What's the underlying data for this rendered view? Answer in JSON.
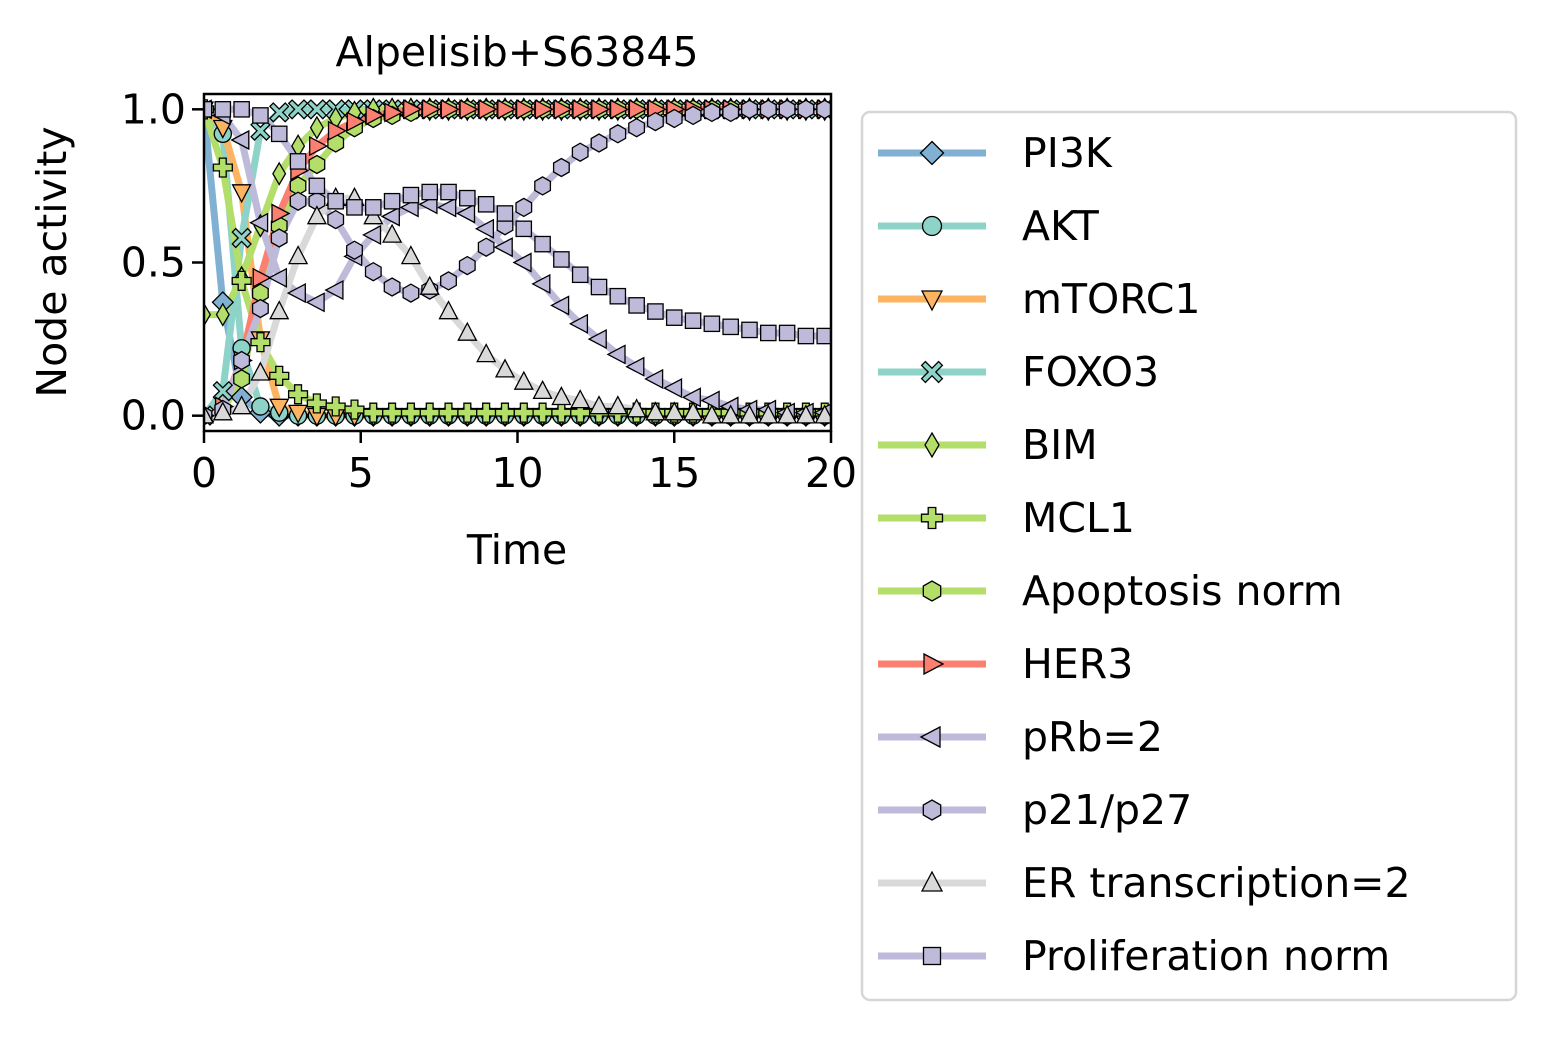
{
  "chart_data": {
    "type": "line",
    "title": "Alpelisib+S63845",
    "xlabel": "Time",
    "ylabel": "Node activity",
    "xlim": [
      0,
      20
    ],
    "ylim": [
      -0.05,
      1.05
    ],
    "xticks": [
      0,
      5,
      10,
      15,
      20
    ],
    "xtick_labels": [
      "0",
      "5",
      "10",
      "15",
      "20"
    ],
    "yticks": [
      0.0,
      0.5,
      1.0
    ],
    "ytick_labels": [
      "0.0",
      "0.5",
      "1.0"
    ],
    "grid": false,
    "legend_position": "right-outside",
    "x": [
      0,
      0.6,
      1.2,
      1.8,
      2.4,
      3.0,
      3.6,
      4.2,
      4.8,
      5.4,
      6.0,
      6.6,
      7.2,
      7.8,
      8.4,
      9.0,
      9.6,
      10.2,
      10.8,
      11.4,
      12.0,
      12.6,
      13.2,
      13.8,
      14.4,
      15.0,
      15.6,
      16.2,
      16.8,
      17.4,
      18.0,
      18.6,
      19.2,
      19.8
    ],
    "series": [
      {
        "name": "PI3K",
        "color": "#80b1d3",
        "marker": "diamond",
        "values": [
          1.0,
          0.37,
          0.06,
          0.01,
          0.0,
          0.0,
          0.0,
          0.0,
          0.0,
          0.0,
          0.0,
          0.0,
          0.0,
          0.0,
          0.0,
          0.0,
          0.0,
          0.0,
          0.0,
          0.0,
          0.0,
          0.0,
          0.0,
          0.0,
          0.0,
          0.0,
          0.0,
          0.0,
          0.0,
          0.0,
          0.0,
          0.0,
          0.0,
          0.0
        ]
      },
      {
        "name": "AKT",
        "color": "#8dd3c7",
        "marker": "circle",
        "values": [
          1.0,
          0.92,
          0.22,
          0.03,
          0.01,
          0.0,
          0.0,
          0.0,
          0.0,
          0.0,
          0.0,
          0.0,
          0.0,
          0.0,
          0.0,
          0.0,
          0.0,
          0.0,
          0.0,
          0.0,
          0.0,
          0.0,
          0.0,
          0.0,
          0.0,
          0.0,
          0.0,
          0.0,
          0.0,
          0.0,
          0.0,
          0.0,
          0.0,
          0.0
        ]
      },
      {
        "name": "mTORC1",
        "color": "#fdb462",
        "marker": "triangle-down",
        "values": [
          1.0,
          0.94,
          0.73,
          0.25,
          0.03,
          0.01,
          0.0,
          0.0,
          0.0,
          0.0,
          0.0,
          0.0,
          0.0,
          0.0,
          0.0,
          0.0,
          0.0,
          0.0,
          0.0,
          0.0,
          0.0,
          0.0,
          0.0,
          0.0,
          0.0,
          0.0,
          0.0,
          0.0,
          0.0,
          0.0,
          0.0,
          0.0,
          0.0,
          0.0
        ]
      },
      {
        "name": "FOXO3",
        "color": "#8dd3c7",
        "marker": "x",
        "values": [
          0.0,
          0.08,
          0.58,
          0.93,
          0.99,
          1.0,
          1.0,
          1.0,
          1.0,
          1.0,
          1.0,
          1.0,
          1.0,
          1.0,
          1.0,
          1.0,
          1.0,
          1.0,
          1.0,
          1.0,
          1.0,
          1.0,
          1.0,
          1.0,
          1.0,
          1.0,
          1.0,
          1.0,
          1.0,
          1.0,
          1.0,
          1.0,
          1.0,
          1.0
        ]
      },
      {
        "name": "BIM",
        "color": "#b3de69",
        "marker": "thin-diamond",
        "values": [
          0.33,
          0.33,
          0.45,
          0.62,
          0.79,
          0.88,
          0.94,
          0.97,
          0.99,
          1.0,
          1.0,
          1.0,
          1.0,
          1.0,
          1.0,
          1.0,
          1.0,
          1.0,
          1.0,
          1.0,
          1.0,
          1.0,
          1.0,
          1.0,
          1.0,
          1.0,
          1.0,
          1.0,
          1.0,
          1.0,
          1.0,
          1.0,
          1.0,
          1.0
        ]
      },
      {
        "name": "MCL1",
        "color": "#b3de69",
        "marker": "plus",
        "values": [
          1.0,
          0.81,
          0.44,
          0.24,
          0.13,
          0.07,
          0.04,
          0.03,
          0.02,
          0.01,
          0.01,
          0.01,
          0.01,
          0.01,
          0.01,
          0.01,
          0.01,
          0.01,
          0.01,
          0.01,
          0.01,
          0.01,
          0.01,
          0.01,
          0.01,
          0.01,
          0.01,
          0.01,
          0.01,
          0.01,
          0.01,
          0.01,
          0.01,
          0.01
        ]
      },
      {
        "name": "Apoptosis norm",
        "color": "#b3de69",
        "marker": "hexagon",
        "values": [
          0.0,
          0.02,
          0.12,
          0.4,
          0.62,
          0.75,
          0.82,
          0.89,
          0.94,
          0.97,
          0.98,
          0.99,
          1.0,
          1.0,
          1.0,
          1.0,
          1.0,
          1.0,
          1.0,
          1.0,
          1.0,
          1.0,
          1.0,
          1.0,
          1.0,
          1.0,
          1.0,
          1.0,
          1.0,
          1.0,
          1.0,
          1.0,
          1.0,
          1.0
        ]
      },
      {
        "name": "HER3",
        "color": "#fb8072",
        "marker": "triangle-right",
        "values": [
          0.0,
          0.03,
          0.18,
          0.45,
          0.66,
          0.8,
          0.88,
          0.93,
          0.96,
          0.98,
          0.99,
          1.0,
          1.0,
          1.0,
          1.0,
          1.0,
          1.0,
          1.0,
          1.0,
          1.0,
          1.0,
          1.0,
          1.0,
          1.0,
          1.0,
          1.0,
          1.0,
          1.0,
          1.0,
          1.0,
          1.0,
          1.0,
          1.0,
          1.0
        ]
      },
      {
        "name": "pRb=2",
        "color": "#bebada",
        "marker": "triangle-left",
        "values": [
          1.0,
          0.98,
          0.9,
          0.63,
          0.45,
          0.4,
          0.37,
          0.41,
          0.52,
          0.59,
          0.65,
          0.68,
          0.69,
          0.68,
          0.66,
          0.61,
          0.55,
          0.5,
          0.43,
          0.36,
          0.3,
          0.25,
          0.2,
          0.16,
          0.12,
          0.09,
          0.06,
          0.05,
          0.03,
          0.02,
          0.02,
          0.01,
          0.01,
          0.01
        ]
      },
      {
        "name": "p21/p27",
        "color": "#bebada",
        "marker": "hexagon",
        "values": [
          0.0,
          0.02,
          0.18,
          0.35,
          0.58,
          0.7,
          0.7,
          0.64,
          0.54,
          0.47,
          0.42,
          0.4,
          0.41,
          0.44,
          0.49,
          0.55,
          0.62,
          0.68,
          0.75,
          0.81,
          0.86,
          0.89,
          0.92,
          0.94,
          0.96,
          0.97,
          0.98,
          0.99,
          0.99,
          1.0,
          1.0,
          1.0,
          1.0,
          1.0
        ]
      },
      {
        "name": "ER transcription=2",
        "color": "#d9d9d9",
        "marker": "triangle-up",
        "values": [
          0.0,
          0.01,
          0.03,
          0.14,
          0.34,
          0.52,
          0.65,
          0.71,
          0.71,
          0.65,
          0.59,
          0.52,
          0.42,
          0.34,
          0.27,
          0.2,
          0.15,
          0.11,
          0.08,
          0.06,
          0.05,
          0.03,
          0.03,
          0.02,
          0.01,
          0.01,
          0.01,
          0.0,
          0.0,
          0.0,
          0.0,
          0.0,
          0.0,
          0.0
        ]
      },
      {
        "name": "Proliferation norm",
        "color": "#bebada",
        "marker": "square",
        "values": [
          1.0,
          1.0,
          1.0,
          0.98,
          0.92,
          0.83,
          0.75,
          0.7,
          0.68,
          0.68,
          0.7,
          0.72,
          0.73,
          0.73,
          0.71,
          0.69,
          0.66,
          0.61,
          0.56,
          0.51,
          0.46,
          0.42,
          0.39,
          0.36,
          0.34,
          0.32,
          0.31,
          0.3,
          0.29,
          0.28,
          0.27,
          0.27,
          0.26,
          0.26
        ]
      }
    ]
  }
}
